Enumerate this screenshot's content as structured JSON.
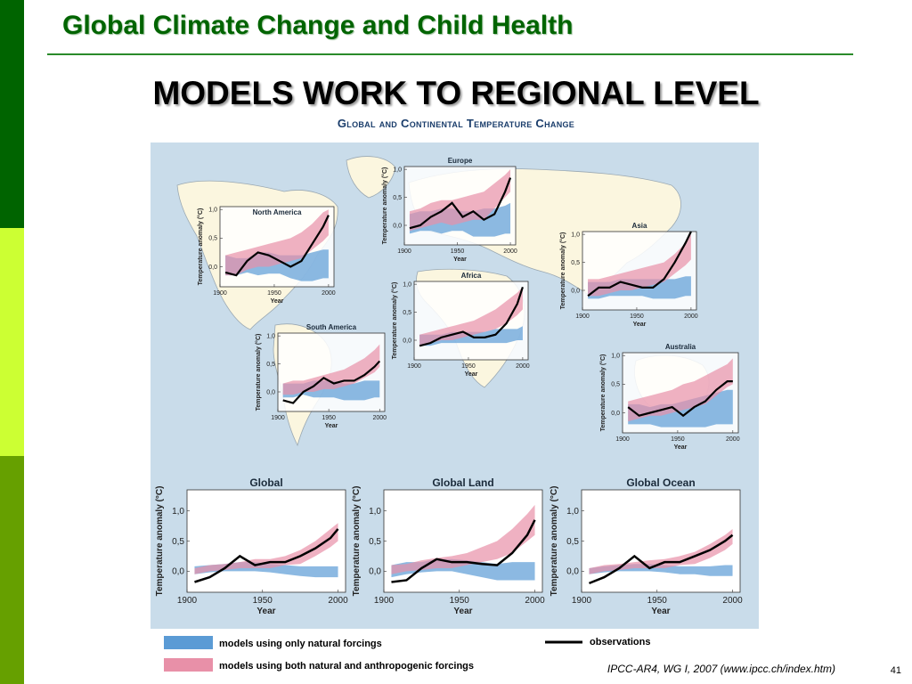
{
  "header": {
    "title": "Global Climate Change and Child Health"
  },
  "slide": {
    "title": "MODELS WORK TO REGIONAL LEVEL",
    "figure_title": "Global and Continental Temperature Change",
    "citation": "IPCC-AR4, WG I, 2007 (www.ipcc.ch/index.htm)",
    "page_number": "41"
  },
  "legend": {
    "natural": "models using only natural forcings",
    "both": "models using both natural and anthropogenic forcings",
    "observations": "observations"
  },
  "colors": {
    "natural": "#5b9bd5",
    "both": "#e890a8",
    "obs": "#000000",
    "ocean": "#c9dcea",
    "land": "#fbf6df",
    "border": "#9aa8b2",
    "bar1": "#006400",
    "bar2": "#ccff33",
    "bar3": "#66a000"
  },
  "chart_data": [
    {
      "type": "area",
      "title": "North America",
      "xlabel": "Year",
      "ylabel": "Temperature anomaly (°C)",
      "xticks": [
        1900,
        1950,
        2000
      ],
      "yticks": [
        "0,0",
        "0,5",
        "1,0"
      ],
      "xlim": [
        1900,
        2005
      ],
      "ylim": [
        -0.35,
        1.05
      ],
      "x": [
        1905,
        1915,
        1925,
        1935,
        1945,
        1955,
        1965,
        1975,
        1985,
        1995,
        2000
      ],
      "natural_low": [
        -0.15,
        -0.15,
        -0.1,
        -0.15,
        -0.12,
        -0.12,
        -0.2,
        -0.25,
        -0.25,
        -0.2,
        -0.2
      ],
      "natural_high": [
        0.2,
        0.15,
        0.15,
        0.25,
        0.25,
        0.2,
        0.2,
        0.2,
        0.25,
        0.3,
        0.3
      ],
      "both_low": [
        -0.15,
        -0.15,
        -0.05,
        0.0,
        0.0,
        0.05,
        0.1,
        0.15,
        0.3,
        0.45,
        0.55
      ],
      "both_high": [
        0.2,
        0.25,
        0.3,
        0.35,
        0.4,
        0.45,
        0.5,
        0.6,
        0.75,
        0.95,
        1.0
      ],
      "observations": [
        -0.1,
        -0.15,
        0.1,
        0.25,
        0.2,
        0.1,
        0.0,
        0.1,
        0.4,
        0.7,
        0.9
      ]
    },
    {
      "type": "area",
      "title": "Europe",
      "xlabel": "Year",
      "ylabel": "Temperature anomaly (°C)",
      "xticks": [
        1900,
        1950,
        2000
      ],
      "yticks": [
        "0,0",
        "0,5",
        "1,0"
      ],
      "xlim": [
        1900,
        2005
      ],
      "ylim": [
        -0.35,
        1.05
      ],
      "x": [
        1905,
        1915,
        1925,
        1935,
        1945,
        1955,
        1965,
        1975,
        1985,
        1995,
        2000
      ],
      "natural_low": [
        -0.15,
        -0.1,
        -0.1,
        -0.15,
        -0.1,
        -0.1,
        -0.2,
        -0.2,
        -0.2,
        -0.15,
        -0.15
      ],
      "natural_high": [
        0.2,
        0.25,
        0.25,
        0.3,
        0.3,
        0.25,
        0.25,
        0.3,
        0.3,
        0.35,
        0.4
      ],
      "both_low": [
        -0.1,
        -0.05,
        0.0,
        0.05,
        0.0,
        0.05,
        0.1,
        0.1,
        0.3,
        0.5,
        0.6
      ],
      "both_high": [
        0.25,
        0.3,
        0.4,
        0.45,
        0.45,
        0.5,
        0.55,
        0.6,
        0.75,
        0.9,
        1.0
      ],
      "observations": [
        -0.05,
        0.0,
        0.15,
        0.25,
        0.4,
        0.15,
        0.25,
        0.1,
        0.2,
        0.6,
        0.85
      ]
    },
    {
      "type": "area",
      "title": "Asia",
      "xlabel": "Year",
      "ylabel": "Temperature anomaly (°C)",
      "xticks": [
        1900,
        1950,
        2000
      ],
      "yticks": [
        "0,0",
        "0,5",
        "1,0"
      ],
      "xlim": [
        1900,
        2005
      ],
      "ylim": [
        -0.35,
        1.05
      ],
      "x": [
        1905,
        1915,
        1925,
        1935,
        1945,
        1955,
        1965,
        1975,
        1985,
        1995,
        2000
      ],
      "natural_low": [
        -0.15,
        -0.15,
        -0.1,
        -0.1,
        -0.1,
        -0.1,
        -0.15,
        -0.15,
        -0.15,
        -0.1,
        -0.1
      ],
      "natural_high": [
        0.15,
        0.15,
        0.15,
        0.2,
        0.2,
        0.2,
        0.2,
        0.2,
        0.2,
        0.25,
        0.25
      ],
      "both_low": [
        -0.1,
        -0.1,
        -0.05,
        0.0,
        0.0,
        0.05,
        0.1,
        0.15,
        0.3,
        0.45,
        0.55
      ],
      "both_high": [
        0.2,
        0.2,
        0.25,
        0.3,
        0.35,
        0.4,
        0.45,
        0.5,
        0.65,
        0.85,
        1.0
      ],
      "observations": [
        -0.1,
        0.05,
        0.05,
        0.15,
        0.1,
        0.05,
        0.05,
        0.2,
        0.5,
        0.85,
        1.05
      ]
    },
    {
      "type": "area",
      "title": "Africa",
      "xlabel": "Year",
      "ylabel": "Temperature anomaly (°C)",
      "xticks": [
        1900,
        1950,
        2000
      ],
      "yticks": [
        "0,0",
        "0,5",
        "1,0"
      ],
      "xlim": [
        1900,
        2005
      ],
      "ylim": [
        -0.35,
        1.05
      ],
      "x": [
        1905,
        1915,
        1925,
        1935,
        1945,
        1955,
        1965,
        1975,
        1985,
        1995,
        2000
      ],
      "natural_low": [
        -0.1,
        -0.1,
        -0.05,
        -0.05,
        -0.05,
        -0.05,
        -0.05,
        -0.05,
        -0.05,
        0.0,
        0.0
      ],
      "natural_high": [
        0.1,
        0.1,
        0.1,
        0.15,
        0.15,
        0.15,
        0.15,
        0.2,
        0.2,
        0.2,
        0.25
      ],
      "both_low": [
        -0.1,
        -0.05,
        0.0,
        0.0,
        0.05,
        0.1,
        0.15,
        0.2,
        0.3,
        0.45,
        0.55
      ],
      "both_high": [
        0.1,
        0.15,
        0.2,
        0.25,
        0.3,
        0.35,
        0.45,
        0.55,
        0.7,
        0.85,
        0.95
      ],
      "observations": [
        -0.1,
        -0.05,
        0.05,
        0.1,
        0.15,
        0.05,
        0.05,
        0.1,
        0.3,
        0.65,
        0.95
      ]
    },
    {
      "type": "area",
      "title": "South America",
      "xlabel": "Year",
      "ylabel": "Temperature anomaly (°C)",
      "xticks": [
        1900,
        1950,
        2000
      ],
      "yticks": [
        "0,0",
        "0,5",
        "1,0"
      ],
      "xlim": [
        1900,
        2005
      ],
      "ylim": [
        -0.35,
        1.05
      ],
      "x": [
        1905,
        1915,
        1925,
        1935,
        1945,
        1955,
        1965,
        1975,
        1985,
        1995,
        2000
      ],
      "natural_low": [
        -0.1,
        -0.1,
        -0.05,
        -0.1,
        -0.1,
        -0.1,
        -0.15,
        -0.15,
        -0.15,
        -0.1,
        -0.1
      ],
      "natural_high": [
        0.15,
        0.15,
        0.15,
        0.2,
        0.2,
        0.2,
        0.15,
        0.15,
        0.2,
        0.2,
        0.2
      ],
      "both_low": [
        -0.05,
        -0.05,
        0.0,
        0.0,
        0.05,
        0.05,
        0.1,
        0.15,
        0.25,
        0.35,
        0.45
      ],
      "both_high": [
        0.15,
        0.2,
        0.2,
        0.25,
        0.3,
        0.35,
        0.4,
        0.5,
        0.6,
        0.75,
        0.85
      ],
      "observations": [
        -0.15,
        -0.2,
        0.0,
        0.1,
        0.25,
        0.15,
        0.2,
        0.2,
        0.3,
        0.45,
        0.55
      ]
    },
    {
      "type": "area",
      "title": "Australia",
      "xlabel": "Year",
      "ylabel": "Temperature anomaly (°C)",
      "xticks": [
        1900,
        1950,
        2000
      ],
      "yticks": [
        "0,0",
        "0,5",
        "1,0"
      ],
      "xlim": [
        1900,
        2005
      ],
      "ylim": [
        -0.35,
        1.05
      ],
      "x": [
        1905,
        1915,
        1925,
        1935,
        1945,
        1955,
        1965,
        1975,
        1985,
        1995,
        2000
      ],
      "natural_low": [
        -0.2,
        -0.2,
        -0.2,
        -0.25,
        -0.25,
        -0.25,
        -0.25,
        -0.25,
        -0.2,
        -0.2,
        -0.2
      ],
      "natural_high": [
        0.15,
        0.15,
        0.1,
        0.15,
        0.15,
        0.2,
        0.25,
        0.3,
        0.35,
        0.4,
        0.4
      ],
      "both_low": [
        -0.15,
        -0.1,
        -0.05,
        -0.05,
        0.0,
        0.05,
        0.1,
        0.15,
        0.3,
        0.45,
        0.5
      ],
      "both_high": [
        0.2,
        0.25,
        0.3,
        0.35,
        0.4,
        0.5,
        0.55,
        0.65,
        0.75,
        0.85,
        0.95
      ],
      "observations": [
        0.1,
        -0.05,
        0.0,
        0.05,
        0.1,
        -0.05,
        0.1,
        0.2,
        0.4,
        0.55,
        0.55
      ]
    },
    {
      "type": "area",
      "title": "Global",
      "xlabel": "Year",
      "ylabel": "Temperature anomaly (°C)",
      "xticks": [
        1900,
        1950,
        2000
      ],
      "yticks": [
        "0,0",
        "0,5",
        "1,0"
      ],
      "xlim": [
        1900,
        2005
      ],
      "ylim": [
        -0.35,
        1.35
      ],
      "x": [
        1905,
        1915,
        1925,
        1935,
        1945,
        1955,
        1965,
        1975,
        1985,
        1995,
        2000
      ],
      "natural_low": [
        -0.05,
        -0.02,
        0.0,
        0.0,
        0.0,
        -0.02,
        -0.05,
        -0.08,
        -0.1,
        -0.1,
        -0.1
      ],
      "natural_high": [
        0.08,
        0.1,
        0.12,
        0.15,
        0.15,
        0.12,
        0.1,
        0.08,
        0.08,
        0.08,
        0.08
      ],
      "both_low": [
        -0.05,
        0.0,
        0.02,
        0.05,
        0.05,
        0.05,
        0.1,
        0.12,
        0.25,
        0.4,
        0.5
      ],
      "both_high": [
        0.05,
        0.1,
        0.12,
        0.15,
        0.2,
        0.2,
        0.25,
        0.35,
        0.5,
        0.7,
        0.8
      ],
      "observations": [
        -0.18,
        -0.1,
        0.05,
        0.25,
        0.1,
        0.15,
        0.15,
        0.25,
        0.38,
        0.55,
        0.7
      ]
    },
    {
      "type": "area",
      "title": "Global Land",
      "xlabel": "Year",
      "ylabel": "Temperature anomaly (°C)",
      "xticks": [
        1900,
        1950,
        2000
      ],
      "yticks": [
        "0,0",
        "0,5",
        "1,0"
      ],
      "xlim": [
        1900,
        2005
      ],
      "ylim": [
        -0.35,
        1.35
      ],
      "x": [
        1905,
        1915,
        1925,
        1935,
        1945,
        1955,
        1965,
        1975,
        1985,
        1995,
        2000
      ],
      "natural_low": [
        -0.1,
        -0.05,
        -0.02,
        0.0,
        0.0,
        -0.05,
        -0.1,
        -0.15,
        -0.15,
        -0.15,
        -0.15
      ],
      "natural_high": [
        0.1,
        0.15,
        0.15,
        0.2,
        0.2,
        0.18,
        0.15,
        0.12,
        0.15,
        0.15,
        0.15
      ],
      "both_low": [
        -0.05,
        0.0,
        0.02,
        0.05,
        0.05,
        0.1,
        0.15,
        0.2,
        0.3,
        0.5,
        0.6
      ],
      "both_high": [
        0.1,
        0.12,
        0.18,
        0.22,
        0.25,
        0.3,
        0.4,
        0.5,
        0.7,
        0.95,
        1.1
      ],
      "observations": [
        -0.18,
        -0.15,
        0.05,
        0.2,
        0.15,
        0.15,
        0.12,
        0.1,
        0.3,
        0.6,
        0.85
      ]
    },
    {
      "type": "area",
      "title": "Global Ocean",
      "xlabel": "Year",
      "ylabel": "Temperature anomaly (°C)",
      "xticks": [
        1900,
        1950,
        2000
      ],
      "yticks": [
        "0,0",
        "0,5",
        "1,0"
      ],
      "xlim": [
        1900,
        2005
      ],
      "ylim": [
        -0.35,
        1.35
      ],
      "x": [
        1905,
        1915,
        1925,
        1935,
        1945,
        1955,
        1965,
        1975,
        1985,
        1995,
        2000
      ],
      "natural_low": [
        -0.05,
        -0.02,
        0.0,
        0.0,
        0.0,
        -0.02,
        -0.05,
        -0.05,
        -0.08,
        -0.08,
        -0.08
      ],
      "natural_high": [
        0.05,
        0.08,
        0.1,
        0.12,
        0.12,
        0.1,
        0.08,
        0.08,
        0.08,
        0.1,
        0.1
      ],
      "both_low": [
        -0.05,
        0.0,
        0.02,
        0.05,
        0.05,
        0.05,
        0.1,
        0.12,
        0.22,
        0.35,
        0.45
      ],
      "both_high": [
        0.05,
        0.1,
        0.12,
        0.15,
        0.18,
        0.2,
        0.25,
        0.32,
        0.45,
        0.6,
        0.7
      ],
      "observations": [
        -0.2,
        -0.1,
        0.05,
        0.25,
        0.05,
        0.15,
        0.15,
        0.25,
        0.35,
        0.5,
        0.6
      ]
    }
  ]
}
